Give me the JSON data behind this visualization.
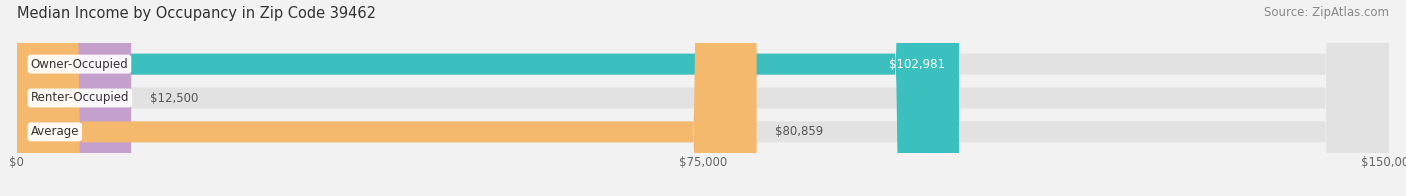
{
  "title": "Median Income by Occupancy in Zip Code 39462",
  "source": "Source: ZipAtlas.com",
  "categories": [
    "Owner-Occupied",
    "Renter-Occupied",
    "Average"
  ],
  "values": [
    102981,
    12500,
    80859
  ],
  "bar_colors": [
    "#3bbfbf",
    "#c4a0cc",
    "#f5b96e"
  ],
  "value_labels": [
    "$102,981",
    "$12,500",
    "$80,859"
  ],
  "value_inside": [
    true,
    false,
    false
  ],
  "x_ticks": [
    0,
    75000,
    150000
  ],
  "x_tick_labels": [
    "$0",
    "$75,000",
    "$150,000"
  ],
  "xlim": [
    0,
    150000
  ],
  "bar_height": 0.62,
  "background_color": "#f2f2f2",
  "bar_bg_color": "#e2e2e2",
  "title_fontsize": 10.5,
  "source_fontsize": 8.5,
  "label_fontsize": 8.5,
  "value_fontsize": 8.5,
  "tick_fontsize": 8.5
}
